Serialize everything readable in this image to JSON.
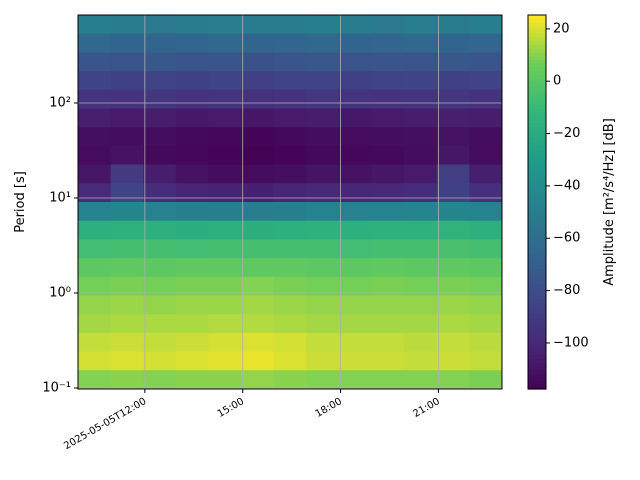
{
  "chart_data": {
    "type": "spectrogram",
    "ylabel": "Period [s]",
    "colorbar_label": "Amplitude [m²/s⁴/Hz] [dB]",
    "colormap": "viridis",
    "yscale": "log",
    "grid": true,
    "grid_color": "#b0b0b0",
    "xlim": [
      "2025-05-05T09:57",
      "2025-05-05T22:57"
    ],
    "xticks": [
      {
        "value": "2025-05-05T12:00",
        "label": "2025-05-05T12:00"
      },
      {
        "value": "2025-05-05T15:00",
        "label": "15:00"
      },
      {
        "value": "2025-05-05T18:00",
        "label": "18:00"
      },
      {
        "value": "2025-05-05T21:00",
        "label": "21:00"
      }
    ],
    "ylim": [
      0.0976,
      843
    ],
    "yticks": [
      {
        "value": 0.1,
        "label": "10⁻¹"
      },
      {
        "value": 1,
        "label": "10⁰"
      },
      {
        "value": 10,
        "label": "10¹"
      },
      {
        "value": 100,
        "label": "10²"
      }
    ],
    "clim": [
      -117.6,
      25.3
    ],
    "cticks": [
      20,
      0,
      {
        "value": -20,
        "label": "−20"
      },
      {
        "value": -40,
        "label": "−40"
      },
      {
        "value": -60,
        "label": "−60"
      },
      {
        "value": -80,
        "label": "−80"
      },
      {
        "value": -100,
        "label": "−100"
      }
    ],
    "x_bins": [
      "2025-05-05T09:57",
      "2025-05-05T10:57",
      "2025-05-05T11:57",
      "2025-05-05T12:57",
      "2025-05-05T13:57",
      "2025-05-05T14:57",
      "2025-05-05T15:57",
      "2025-05-05T16:57",
      "2025-05-05T17:57",
      "2025-05-05T18:57",
      "2025-05-05T19:57",
      "2025-05-05T20:57",
      "2025-05-05T21:57",
      "2025-05-05T22:57"
    ],
    "y_bins": [
      843,
      536,
      340,
      217,
      138,
      87.5,
      55.6,
      35.4,
      22.5,
      14.3,
      9.08,
      5.77,
      3.67,
      2.33,
      1.48,
      0.942,
      0.598,
      0.381,
      0.242,
      0.154,
      0.0976
    ],
    "values": [
      [
        -48,
        -50,
        -52,
        -50,
        -49,
        -51,
        -50,
        -48,
        -50,
        -52,
        -49,
        -50,
        -48
      ],
      [
        -64,
        -66,
        -66,
        -65,
        -64,
        -66,
        -65,
        -64,
        -66,
        -65,
        -64,
        -66,
        -65
      ],
      [
        -75,
        -76,
        -74,
        -76,
        -75,
        -77,
        -75,
        -74,
        -76,
        -75,
        -76,
        -74,
        -75
      ],
      [
        -84,
        -86,
        -85,
        -86,
        -84,
        -87,
        -85,
        -84,
        -86,
        -85,
        -84,
        -86,
        -85
      ],
      [
        -93,
        -94,
        -92,
        -95,
        -93,
        -95,
        -94,
        -92,
        -93,
        -94,
        -93,
        -92,
        -94
      ],
      [
        -104,
        -106,
        -105,
        -107,
        -106,
        -108,
        -106,
        -105,
        -107,
        -106,
        -105,
        -104,
        -105
      ],
      [
        -111,
        -112,
        -112,
        -114,
        -115,
        -116,
        -114,
        -112,
        -113,
        -112,
        -111,
        -110,
        -112
      ],
      [
        -113,
        -110,
        -114,
        -115,
        -116,
        -117,
        -116,
        -114,
        -115,
        -114,
        -112,
        -108,
        -113
      ],
      [
        -108,
        -90,
        -105,
        -110,
        -112,
        -113,
        -111,
        -109,
        -110,
        -108,
        -106,
        -88,
        -104
      ],
      [
        -98,
        -85,
        -97,
        -101,
        -102,
        -103,
        -101,
        -99,
        -100,
        -99,
        -97,
        -86,
        -96
      ],
      [
        -46,
        -44,
        -47,
        -48,
        -48,
        -49,
        -48,
        -46,
        -47,
        -46,
        -45,
        -44,
        -46
      ],
      [
        -16,
        -15,
        -16,
        -17,
        -16,
        -17,
        -16,
        -15,
        -16,
        -15,
        -15,
        -14,
        -16
      ],
      [
        -6,
        -5,
        -5,
        -6,
        -5,
        -5,
        -5,
        -5,
        -6,
        -5,
        -5,
        -4,
        -5
      ],
      [
        2,
        3,
        2,
        3,
        3,
        3,
        3,
        2,
        2,
        3,
        2,
        3,
        2
      ],
      [
        8,
        9,
        8,
        9,
        9,
        10,
        9,
        8,
        8,
        9,
        8,
        9,
        8
      ],
      [
        12,
        13,
        12,
        13,
        13,
        14,
        13,
        12,
        12,
        12,
        12,
        13,
        12
      ],
      [
        14,
        15,
        15,
        15,
        16,
        16,
        15,
        14,
        14,
        14,
        14,
        15,
        14
      ],
      [
        18,
        19,
        18,
        19,
        20,
        21,
        20,
        18,
        18,
        18,
        17,
        18,
        17
      ],
      [
        20,
        21,
        20,
        21,
        22,
        23,
        21,
        19,
        19,
        19,
        18,
        19,
        18
      ],
      [
        10,
        11,
        10,
        11,
        11,
        12,
        11,
        10,
        10,
        10,
        10,
        10,
        9
      ]
    ]
  }
}
